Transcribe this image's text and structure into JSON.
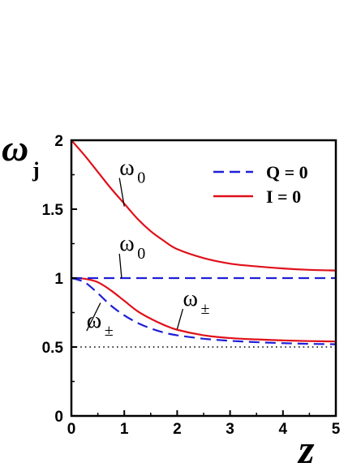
{
  "chart_data": {
    "type": "line",
    "xlabel": "z",
    "ylabel": "ω",
    "ylabel_sub": "j",
    "xlim": [
      0,
      5
    ],
    "ylim": [
      0,
      2
    ],
    "x_ticks": [
      0,
      1,
      2,
      3,
      4,
      5
    ],
    "x_tick_labels": [
      "0",
      "1",
      "2",
      "3",
      "4",
      "5"
    ],
    "y_ticks": [
      0,
      0.5,
      1,
      1.5,
      2
    ],
    "y_tick_labels": [
      "0",
      "0.5",
      "1",
      "1.5",
      "2"
    ],
    "grid": false,
    "legend": {
      "placement": "top-right",
      "entries": [
        {
          "label": "Q = 0",
          "color": "#1f1fd6",
          "style": "dashed"
        },
        {
          "label": "I = 0",
          "color": "#e0101a",
          "style": "solid"
        }
      ]
    },
    "series": [
      {
        "key": "omega0_I",
        "color": "#e0101a",
        "style": "solid",
        "x": [
          0,
          0.25,
          0.5,
          0.75,
          1,
          1.25,
          1.5,
          1.75,
          2,
          2.5,
          3,
          3.5,
          4,
          4.5,
          5
        ],
        "y": [
          2.0,
          1.89,
          1.77,
          1.65,
          1.54,
          1.43,
          1.34,
          1.27,
          1.21,
          1.145,
          1.105,
          1.085,
          1.07,
          1.06,
          1.055
        ]
      },
      {
        "key": "omegapm_I",
        "color": "#e0101a",
        "style": "solid",
        "x": [
          0,
          0.25,
          0.5,
          0.75,
          1,
          1.25,
          1.5,
          1.75,
          2,
          2.5,
          3,
          3.5,
          4,
          4.5,
          5
        ],
        "y": [
          1.0,
          0.995,
          0.97,
          0.91,
          0.835,
          0.76,
          0.705,
          0.66,
          0.625,
          0.585,
          0.565,
          0.555,
          0.548,
          0.543,
          0.54
        ]
      },
      {
        "key": "omega0_Q",
        "color": "#1f1fd6",
        "style": "dashed",
        "x": [
          0,
          5
        ],
        "y": [
          1.0,
          1.0
        ]
      },
      {
        "key": "omegapm_Q",
        "color": "#1f1fd6",
        "style": "dashed",
        "x": [
          0,
          0.25,
          0.5,
          0.75,
          1,
          1.25,
          1.5,
          1.75,
          2,
          2.5,
          3,
          3.5,
          4,
          4.5,
          5
        ],
        "y": [
          1.0,
          0.97,
          0.89,
          0.8,
          0.73,
          0.675,
          0.635,
          0.605,
          0.585,
          0.56,
          0.545,
          0.535,
          0.528,
          0.523,
          0.52
        ]
      },
      {
        "key": "half_ref",
        "color": "#000000",
        "style": "dotted",
        "x": [
          0,
          5
        ],
        "y": [
          0.5,
          0.5
        ]
      }
    ],
    "annotations": [
      {
        "key": "ann-omega0-upper",
        "text": "ω",
        "sub": "0",
        "at": [
          1.0,
          1.52
        ],
        "label_at": [
          1.0,
          1.75
        ]
      },
      {
        "key": "ann-omega0-mid",
        "text": "ω",
        "sub": "0",
        "at": [
          0.95,
          1.0
        ],
        "label_at": [
          1.0,
          1.2
        ]
      },
      {
        "key": "ann-omegapm-right",
        "text": "ω",
        "sub": "±",
        "at": [
          2.0,
          0.63
        ],
        "label_at": [
          2.2,
          0.8
        ]
      },
      {
        "key": "ann-omegapm-left",
        "text": "ω",
        "sub": "±",
        "at": [
          0.55,
          0.82
        ],
        "label_at": [
          0.38,
          0.64
        ]
      }
    ]
  }
}
